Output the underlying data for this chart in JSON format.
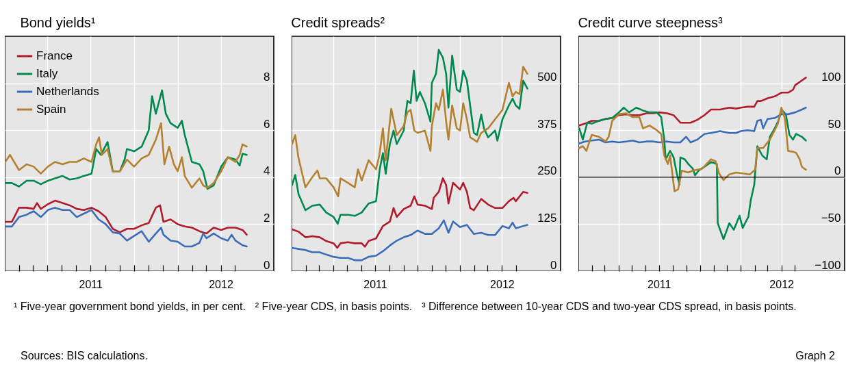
{
  "chart_data": [
    {
      "type": "line",
      "title": "Bond yields¹",
      "xlim": [
        "2011-01-01",
        "2012-07-22"
      ],
      "ylim": [
        0,
        10
      ],
      "yticks": [
        0,
        2,
        4,
        6,
        8
      ],
      "grid": true,
      "legend": "top left",
      "xticks": [
        {
          "value": "2011-02-01",
          "label": null
        },
        {
          "value": "2011-03-01",
          "label": null
        },
        {
          "value": "2011-04-01",
          "label": null
        },
        {
          "value": "2011-05-01",
          "label": null
        },
        {
          "value": "2011-06-01",
          "label": null
        },
        {
          "value": "2011-07-01",
          "label": "2011"
        },
        {
          "value": "2011-08-01",
          "label": null
        },
        {
          "value": "2011-09-01",
          "label": null
        },
        {
          "value": "2011-10-01",
          "label": null
        },
        {
          "value": "2011-11-01",
          "label": null
        },
        {
          "value": "2011-12-01",
          "label": null
        },
        {
          "value": "2012-01-01",
          "label": null
        },
        {
          "value": "2012-02-01",
          "label": null
        },
        {
          "value": "2012-03-01",
          "label": null
        },
        {
          "value": "2012-04-01",
          "label": "2012"
        },
        {
          "value": "2012-05-01",
          "label": null
        }
      ],
      "annotations": [
        "¹ Five-year government bond yields, in per cent."
      ],
      "series": [
        {
          "name": "France",
          "color": "#b01c2e",
          "x": [
            "2011-01-02",
            "2011-01-16",
            "2011-01-31",
            "2011-02-16",
            "2011-03-03",
            "2011-03-10",
            "2011-03-18",
            "2011-04-02",
            "2011-04-17",
            "2011-05-03",
            "2011-05-18",
            "2011-06-02",
            "2011-06-17",
            "2011-07-03",
            "2011-07-18",
            "2011-08-02",
            "2011-08-17",
            "2011-09-01",
            "2011-09-16",
            "2011-10-01",
            "2011-10-17",
            "2011-11-01",
            "2011-11-16",
            "2011-11-25",
            "2011-12-02",
            "2011-12-17",
            "2012-01-01",
            "2012-01-16",
            "2012-01-31",
            "2012-02-16",
            "2012-03-02",
            "2012-03-17",
            "2012-04-02",
            "2012-04-16",
            "2012-05-02",
            "2012-05-17",
            "2012-05-26"
          ],
          "values": [
            2.1,
            2.1,
            2.7,
            2.7,
            2.65,
            2.9,
            2.65,
            2.85,
            3.0,
            2.9,
            2.8,
            2.65,
            2.6,
            2.7,
            2.55,
            2.3,
            1.8,
            1.65,
            1.8,
            1.8,
            1.95,
            2.05,
            2.7,
            2.8,
            2.1,
            2.2,
            2.0,
            1.9,
            1.85,
            1.7,
            1.6,
            1.85,
            1.75,
            1.85,
            1.85,
            1.75,
            1.55
          ]
        },
        {
          "name": "Italy",
          "color": "#00894f",
          "x": [
            "2011-01-02",
            "2011-01-16",
            "2011-01-31",
            "2011-02-16",
            "2011-03-03",
            "2011-03-18",
            "2011-04-02",
            "2011-04-17",
            "2011-05-03",
            "2011-05-18",
            "2011-06-02",
            "2011-06-17",
            "2011-07-03",
            "2011-07-13",
            "2011-07-23",
            "2011-08-06",
            "2011-08-17",
            "2011-09-01",
            "2011-09-11",
            "2011-09-16",
            "2011-10-01",
            "2011-10-17",
            "2011-11-01",
            "2011-11-08",
            "2011-11-16",
            "2011-11-29",
            "2011-12-07",
            "2011-12-17",
            "2012-01-01",
            "2012-01-10",
            "2012-01-16",
            "2012-01-31",
            "2012-02-16",
            "2012-02-24",
            "2012-03-04",
            "2012-03-17",
            "2012-04-02",
            "2012-04-16",
            "2012-05-02",
            "2012-05-11",
            "2012-05-17",
            "2012-05-26"
          ],
          "values": [
            3.75,
            3.75,
            3.6,
            3.85,
            3.85,
            3.7,
            3.85,
            3.95,
            4.05,
            3.9,
            3.95,
            4.05,
            4.15,
            5.2,
            4.95,
            5.5,
            4.25,
            4.25,
            4.75,
            5.2,
            5.1,
            5.3,
            6.0,
            7.45,
            6.7,
            7.7,
            6.7,
            6.3,
            6.1,
            6.4,
            5.8,
            4.65,
            4.55,
            4.25,
            3.5,
            3.65,
            4.45,
            4.85,
            4.75,
            4.5,
            5.0,
            4.95
          ]
        },
        {
          "name": "Netherlands",
          "color": "#3b6cb7",
          "x": [
            "2011-01-02",
            "2011-01-16",
            "2011-01-31",
            "2011-02-16",
            "2011-03-03",
            "2011-03-18",
            "2011-04-02",
            "2011-04-17",
            "2011-05-03",
            "2011-05-18",
            "2011-06-02",
            "2011-06-17",
            "2011-07-03",
            "2011-07-18",
            "2011-08-02",
            "2011-08-17",
            "2011-09-01",
            "2011-09-16",
            "2011-10-01",
            "2011-10-17",
            "2011-11-01",
            "2011-11-16",
            "2011-11-27",
            "2011-12-02",
            "2011-12-17",
            "2012-01-01",
            "2012-01-16",
            "2012-01-31",
            "2012-02-16",
            "2012-02-24",
            "2012-03-02",
            "2012-03-17",
            "2012-04-02",
            "2012-04-16",
            "2012-04-24",
            "2012-05-02",
            "2012-05-17",
            "2012-05-26"
          ],
          "values": [
            1.9,
            1.9,
            2.3,
            2.4,
            2.55,
            2.3,
            2.6,
            2.7,
            2.6,
            2.6,
            2.3,
            2.45,
            2.6,
            2.2,
            2.0,
            1.65,
            1.6,
            1.3,
            1.5,
            1.7,
            1.25,
            1.6,
            1.85,
            1.55,
            1.3,
            1.25,
            1.05,
            1.05,
            1.2,
            1.6,
            1.4,
            1.6,
            1.4,
            1.3,
            1.55,
            1.3,
            1.1,
            1.05
          ]
        },
        {
          "name": "Spain",
          "color": "#b38130",
          "x": [
            "2011-01-02",
            "2011-01-12",
            "2011-01-31",
            "2011-02-16",
            "2011-03-03",
            "2011-03-18",
            "2011-04-02",
            "2011-04-17",
            "2011-05-03",
            "2011-05-18",
            "2011-06-02",
            "2011-06-17",
            "2011-07-03",
            "2011-07-13",
            "2011-07-19",
            "2011-07-25",
            "2011-08-06",
            "2011-08-17",
            "2011-09-01",
            "2011-09-16",
            "2011-10-01",
            "2011-10-17",
            "2011-11-01",
            "2011-11-16",
            "2011-11-27",
            "2011-12-04",
            "2011-12-14",
            "2011-12-24",
            "2012-01-01",
            "2012-01-10",
            "2012-01-16",
            "2012-01-31",
            "2012-02-16",
            "2012-02-24",
            "2012-03-04",
            "2012-03-17",
            "2012-04-02",
            "2012-04-16",
            "2012-05-02",
            "2012-05-11",
            "2012-05-17",
            "2012-05-26"
          ],
          "values": [
            4.65,
            4.95,
            4.3,
            4.55,
            4.45,
            4.15,
            4.45,
            4.65,
            4.55,
            4.65,
            4.65,
            4.8,
            4.65,
            5.4,
            5.7,
            4.95,
            5.2,
            4.25,
            4.25,
            4.75,
            4.45,
            4.8,
            4.95,
            5.6,
            6.3,
            4.55,
            5.3,
            4.55,
            4.25,
            4.85,
            4.05,
            3.55,
            3.95,
            3.65,
            3.55,
            3.75,
            4.25,
            4.85,
            4.65,
            4.95,
            5.4,
            5.3
          ]
        }
      ]
    },
    {
      "type": "line",
      "title": "Credit spreads²",
      "xlim": [
        "2011-01-01",
        "2012-08-06"
      ],
      "ylim": [
        0,
        625
      ],
      "yticks": [
        0,
        125,
        250,
        375,
        500
      ],
      "grid": true,
      "xticks": [
        {
          "value": "2011-02-01",
          "label": null
        },
        {
          "value": "2011-03-01",
          "label": null
        },
        {
          "value": "2011-04-01",
          "label": null
        },
        {
          "value": "2011-05-01",
          "label": null
        },
        {
          "value": "2011-06-01",
          "label": null
        },
        {
          "value": "2011-07-01",
          "label": "2011"
        },
        {
          "value": "2011-08-01",
          "label": null
        },
        {
          "value": "2011-09-01",
          "label": null
        },
        {
          "value": "2011-10-01",
          "label": null
        },
        {
          "value": "2011-11-01",
          "label": null
        },
        {
          "value": "2011-12-01",
          "label": null
        },
        {
          "value": "2012-01-01",
          "label": null
        },
        {
          "value": "2012-02-01",
          "label": null
        },
        {
          "value": "2012-03-01",
          "label": null
        },
        {
          "value": "2012-04-01",
          "label": "2012"
        },
        {
          "value": "2012-05-01",
          "label": null
        }
      ],
      "annotations": [
        "² Five-year CDS, in basis points."
      ],
      "series": [
        {
          "color": "#b01c2e",
          "x": [
            "2011-01-02",
            "2011-01-16",
            "2011-01-31",
            "2011-02-15",
            "2011-03-03",
            "2011-03-17",
            "2011-04-02",
            "2011-04-10",
            "2011-04-17",
            "2011-05-03",
            "2011-05-18",
            "2011-06-02",
            "2011-06-09",
            "2011-06-17",
            "2011-07-03",
            "2011-07-18",
            "2011-08-02",
            "2011-08-10",
            "2011-08-17",
            "2011-09-01",
            "2011-09-16",
            "2011-09-24",
            "2011-10-01",
            "2011-10-17",
            "2011-11-01",
            "2011-11-05",
            "2011-11-16",
            "2011-11-25",
            "2011-12-02",
            "2011-12-07",
            "2011-12-17",
            "2012-01-01",
            "2012-01-08",
            "2012-01-16",
            "2012-01-23",
            "2012-01-31",
            "2012-02-16",
            "2012-03-02",
            "2012-03-17",
            "2012-04-02",
            "2012-04-16",
            "2012-04-26",
            "2012-05-01",
            "2012-05-17",
            "2012-05-26"
          ],
          "values": [
            111,
            105,
            90,
            93,
            90,
            80,
            74,
            62,
            74,
            77,
            74,
            74,
            65,
            80,
            87,
            120,
            132,
            168,
            144,
            165,
            174,
            199,
            177,
            174,
            165,
            195,
            211,
            247,
            229,
            180,
            235,
            217,
            235,
            211,
            168,
            162,
            192,
            177,
            168,
            168,
            186,
            195,
            186,
            211,
            208
          ]
        },
        {
          "color": "#00894f",
          "x": [
            "2011-01-02",
            "2011-01-09",
            "2011-01-16",
            "2011-01-31",
            "2011-02-15",
            "2011-03-03",
            "2011-03-17",
            "2011-04-02",
            "2011-04-11",
            "2011-04-17",
            "2011-05-03",
            "2011-05-18",
            "2011-06-02",
            "2011-06-17",
            "2011-07-03",
            "2011-07-11",
            "2011-07-18",
            "2011-07-24",
            "2011-08-02",
            "2011-08-10",
            "2011-08-17",
            "2011-09-01",
            "2011-09-09",
            "2011-09-16",
            "2011-09-23",
            "2011-09-29",
            "2011-10-06",
            "2011-10-17",
            "2011-10-29",
            "2011-11-01",
            "2011-11-10",
            "2011-11-16",
            "2011-11-25",
            "2011-12-02",
            "2011-12-07",
            "2011-12-15",
            "2011-12-25",
            "2012-01-01",
            "2012-01-08",
            "2012-01-16",
            "2012-01-23",
            "2012-01-31",
            "2012-02-07",
            "2012-02-16",
            "2012-02-22",
            "2012-03-02",
            "2012-03-17",
            "2012-03-22",
            "2012-04-02",
            "2012-04-16",
            "2012-04-24",
            "2012-05-01",
            "2012-05-09",
            "2012-05-17",
            "2012-05-26"
          ],
          "values": [
            229,
            256,
            205,
            162,
            174,
            177,
            156,
            144,
            126,
            150,
            150,
            147,
            156,
            180,
            186,
            271,
            314,
            259,
            338,
            374,
            338,
            374,
            453,
            447,
            534,
            453,
            477,
            447,
            398,
            501,
            525,
            589,
            568,
            525,
            435,
            574,
            483,
            477,
            534,
            507,
            441,
            368,
            362,
            417,
            380,
            356,
            374,
            347,
            404,
            441,
            459,
            441,
            432,
            507,
            486
          ]
        },
        {
          "color": "#3b6cb7",
          "x": [
            "2011-01-02",
            "2011-01-16",
            "2011-01-31",
            "2011-02-15",
            "2011-03-03",
            "2011-03-17",
            "2011-04-02",
            "2011-04-17",
            "2011-05-03",
            "2011-05-18",
            "2011-06-02",
            "2011-06-17",
            "2011-07-03",
            "2011-07-18",
            "2011-08-02",
            "2011-08-17",
            "2011-09-01",
            "2011-09-16",
            "2011-10-01",
            "2011-10-17",
            "2011-11-01",
            "2011-11-16",
            "2011-11-27",
            "2011-12-07",
            "2011-12-17",
            "2012-01-01",
            "2012-01-16",
            "2012-01-31",
            "2012-02-16",
            "2012-03-02",
            "2012-03-17",
            "2012-04-02",
            "2012-04-16",
            "2012-04-24",
            "2012-05-01",
            "2012-05-17",
            "2012-05-26"
          ],
          "values": [
            62,
            59,
            56,
            50,
            50,
            44,
            38,
            35,
            35,
            29,
            29,
            38,
            41,
            53,
            68,
            81,
            90,
            96,
            108,
            99,
            99,
            114,
            135,
            102,
            132,
            117,
            123,
            99,
            102,
            96,
            96,
            120,
            114,
            129,
            114,
            120,
            123
          ]
        },
        {
          "color": "#b38130",
          "x": [
            "2011-01-02",
            "2011-01-09",
            "2011-01-16",
            "2011-01-31",
            "2011-02-15",
            "2011-02-26",
            "2011-03-03",
            "2011-03-17",
            "2011-04-02",
            "2011-04-12",
            "2011-04-17",
            "2011-05-03",
            "2011-05-18",
            "2011-05-25",
            "2011-06-02",
            "2011-06-17",
            "2011-07-03",
            "2011-07-10",
            "2011-07-18",
            "2011-07-24",
            "2011-08-05",
            "2011-08-17",
            "2011-09-01",
            "2011-09-09",
            "2011-09-16",
            "2011-09-24",
            "2011-10-01",
            "2011-10-17",
            "2011-10-29",
            "2011-11-01",
            "2011-11-10",
            "2011-11-16",
            "2011-11-25",
            "2011-12-02",
            "2011-12-07",
            "2011-12-15",
            "2011-12-25",
            "2012-01-01",
            "2012-01-08",
            "2012-01-16",
            "2012-01-23",
            "2012-01-31",
            "2012-02-07",
            "2012-02-16",
            "2012-03-02",
            "2012-03-17",
            "2012-04-02",
            "2012-04-16",
            "2012-04-24",
            "2012-05-01",
            "2012-05-09",
            "2012-05-17",
            "2012-05-26"
          ],
          "values": [
            338,
            362,
            301,
            223,
            250,
            268,
            247,
            247,
            223,
            199,
            247,
            235,
            223,
            271,
            241,
            295,
            271,
            307,
            380,
            295,
            432,
            362,
            386,
            423,
            429,
            374,
            368,
            374,
            320,
            386,
            447,
            429,
            483,
            398,
            350,
            441,
            380,
            374,
            447,
            404,
            356,
            350,
            344,
            368,
            380,
            404,
            429,
            501,
            465,
            477,
            471,
            544,
            525
          ]
        }
      ]
    },
    {
      "type": "line",
      "title": "Credit curve steepness³",
      "xlim": [
        "2011-01-01",
        "2012-08-21"
      ],
      "ylim": [
        -100,
        150
      ],
      "yticks": [
        {
          "value": -100,
          "label": "−100"
        },
        {
          "value": -50,
          "label": "−50"
        },
        0,
        50,
        100
      ],
      "grid": true,
      "ref_lines": [
        {
          "axis": "y",
          "value": 0,
          "color": "#000000"
        }
      ],
      "xticks": [
        {
          "value": "2011-02-01",
          "label": null
        },
        {
          "value": "2011-03-01",
          "label": null
        },
        {
          "value": "2011-04-01",
          "label": null
        },
        {
          "value": "2011-05-01",
          "label": null
        },
        {
          "value": "2011-06-01",
          "label": null
        },
        {
          "value": "2011-07-01",
          "label": "2011"
        },
        {
          "value": "2011-08-01",
          "label": null
        },
        {
          "value": "2011-09-01",
          "label": null
        },
        {
          "value": "2011-10-01",
          "label": null
        },
        {
          "value": "2011-11-01",
          "label": null
        },
        {
          "value": "2011-12-01",
          "label": null
        },
        {
          "value": "2012-01-01",
          "label": null
        },
        {
          "value": "2012-02-01",
          "label": null
        },
        {
          "value": "2012-03-01",
          "label": null
        },
        {
          "value": "2012-04-01",
          "label": "2012"
        },
        {
          "value": "2012-05-01",
          "label": null
        }
      ],
      "annotations": [
        "³ Difference between 10-year CDS and two-year CDS spread, in basis points.",
        "Sources: BIS calculations.",
        "Graph 2"
      ],
      "series": [
        {
          "color": "#b01c2e",
          "x": [
            "2011-01-03",
            "2011-01-16",
            "2011-01-31",
            "2011-02-16",
            "2011-03-03",
            "2011-03-18",
            "2011-04-02",
            "2011-04-18",
            "2011-05-03",
            "2011-05-18",
            "2011-06-03",
            "2011-06-18",
            "2011-07-02",
            "2011-07-19",
            "2011-08-03",
            "2011-08-18",
            "2011-09-10",
            "2011-09-25",
            "2011-10-11",
            "2011-10-26",
            "2011-11-15",
            "2011-12-06",
            "2011-12-21",
            "2012-01-01",
            "2012-01-16",
            "2012-01-31",
            "2012-02-07",
            "2012-02-15",
            "2012-03-01",
            "2012-03-17",
            "2012-04-01",
            "2012-04-16",
            "2012-04-27",
            "2012-05-02",
            "2012-05-17",
            "2012-05-26"
          ],
          "values": [
            55,
            57,
            60,
            60,
            62,
            63,
            66,
            67,
            66,
            66,
            68,
            68,
            69,
            68,
            66,
            58,
            58,
            61,
            66,
            72,
            72,
            74,
            73,
            74,
            75,
            75,
            81,
            81,
            84,
            86,
            90,
            90,
            93,
            98,
            103,
            106
          ]
        },
        {
          "color": "#00894f",
          "x": [
            "2011-01-03",
            "2011-01-11",
            "2011-01-21",
            "2011-01-31",
            "2011-02-16",
            "2011-03-03",
            "2011-03-18",
            "2011-04-02",
            "2011-04-13",
            "2011-04-25",
            "2011-05-11",
            "2011-05-26",
            "2011-06-10",
            "2011-06-26",
            "2011-07-06",
            "2011-07-13",
            "2011-07-16",
            "2011-07-26",
            "2011-08-03",
            "2011-08-10",
            "2011-08-16",
            "2011-08-18",
            "2011-08-28",
            "2011-09-05",
            "2011-09-15",
            "2011-09-20",
            "2011-09-28",
            "2011-10-11",
            "2011-10-26",
            "2011-11-08",
            "2011-11-10",
            "2011-11-23",
            "2011-12-06",
            "2011-12-16",
            "2011-12-29",
            "2012-01-05",
            "2012-01-18",
            "2012-01-23",
            "2012-01-31",
            "2012-02-07",
            "2012-02-18",
            "2012-02-28",
            "2012-03-06",
            "2012-03-17",
            "2012-03-27",
            "2012-04-01",
            "2012-04-11",
            "2012-04-19",
            "2012-04-27",
            "2012-05-04",
            "2012-05-17",
            "2012-05-26"
          ],
          "values": [
            52,
            40,
            58,
            57,
            60,
            62,
            63,
            69,
            74,
            69,
            74,
            71,
            69,
            69,
            64,
            40,
            19,
            28,
            21,
            4,
            -8,
            21,
            19,
            14,
            9,
            2,
            7,
            11,
            16,
            14,
            -49,
            -66,
            -49,
            -56,
            -41,
            -54,
            -42,
            -25,
            -8,
            33,
            23,
            19,
            43,
            52,
            62,
            72,
            67,
            45,
            40,
            46,
            43,
            39
          ]
        },
        {
          "color": "#3b6cb7",
          "x": [
            "2011-01-03",
            "2011-01-16",
            "2011-01-31",
            "2011-02-16",
            "2011-03-03",
            "2011-03-18",
            "2011-04-02",
            "2011-04-18",
            "2011-05-03",
            "2011-05-18",
            "2011-06-03",
            "2011-06-18",
            "2011-07-02",
            "2011-07-19",
            "2011-08-03",
            "2011-08-18",
            "2011-08-31",
            "2011-09-10",
            "2011-09-25",
            "2011-10-11",
            "2011-10-26",
            "2011-11-15",
            "2011-12-06",
            "2011-12-21",
            "2012-01-01",
            "2012-01-16",
            "2012-01-31",
            "2012-02-07",
            "2012-02-15",
            "2012-02-20",
            "2012-03-01",
            "2012-03-17",
            "2012-04-01",
            "2012-04-16",
            "2012-05-02",
            "2012-05-17",
            "2012-05-26"
          ],
          "values": [
            36,
            38,
            39,
            40,
            37,
            38,
            37,
            38,
            39,
            37,
            38,
            38,
            37,
            38,
            37,
            37,
            43,
            37,
            40,
            46,
            47,
            49,
            47,
            47,
            49,
            50,
            49,
            60,
            61,
            52,
            62,
            63,
            67,
            67,
            69,
            72,
            74
          ]
        },
        {
          "color": "#b38130",
          "x": [
            "2011-01-03",
            "2011-01-11",
            "2011-01-19",
            "2011-01-31",
            "2011-02-16",
            "2011-03-03",
            "2011-03-10",
            "2011-03-18",
            "2011-04-02",
            "2011-04-18",
            "2011-05-03",
            "2011-05-18",
            "2011-05-26",
            "2011-06-10",
            "2011-06-26",
            "2011-07-06",
            "2011-07-13",
            "2011-07-21",
            "2011-07-26",
            "2011-08-05",
            "2011-08-13",
            "2011-08-21",
            "2011-09-05",
            "2011-09-15",
            "2011-10-06",
            "2011-10-26",
            "2011-11-05",
            "2011-11-13",
            "2011-11-23",
            "2011-12-06",
            "2011-12-21",
            "2012-01-05",
            "2012-01-21",
            "2012-02-02",
            "2012-02-07",
            "2012-02-20",
            "2012-03-06",
            "2012-03-17",
            "2012-03-24",
            "2012-04-01",
            "2012-04-09",
            "2012-04-16",
            "2012-04-27",
            "2012-05-04",
            "2012-05-12",
            "2012-05-17",
            "2012-05-26"
          ],
          "values": [
            31,
            33,
            28,
            45,
            43,
            38,
            43,
            60,
            67,
            68,
            64,
            64,
            52,
            55,
            50,
            46,
            23,
            14,
            23,
            -15,
            -13,
            7,
            5,
            7,
            9,
            19,
            17,
            4,
            -3,
            3,
            5,
            4,
            3,
            8,
            31,
            31,
            40,
            50,
            57,
            74,
            62,
            28,
            27,
            26,
            19,
            11,
            8
          ]
        }
      ]
    }
  ]
}
